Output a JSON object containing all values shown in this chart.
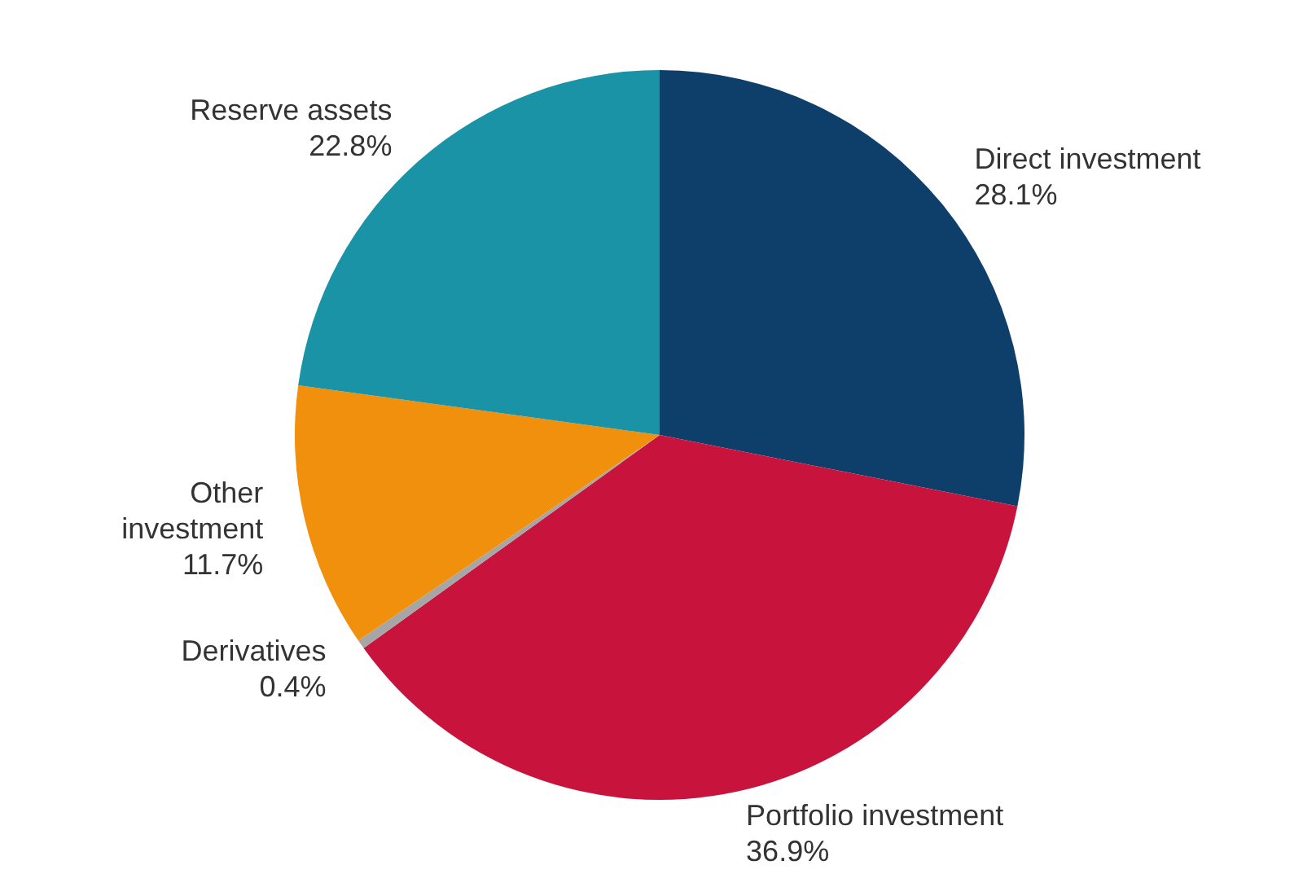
{
  "chart_data": {
    "type": "pie",
    "categories": [
      "Direct investment",
      "Portfolio investment",
      "Derivatives",
      "Other investment",
      "Reserve assets"
    ],
    "values": [
      28.1,
      36.9,
      0.4,
      11.7,
      22.8
    ],
    "colors": [
      "#0e3f6b",
      "#c8143c",
      "#a6a6a6",
      "#f0900c",
      "#1b93a7"
    ],
    "value_labels": [
      "28.1%",
      "36.9%",
      "0.4%",
      "11.7%",
      "22.8%"
    ],
    "legend": false
  }
}
